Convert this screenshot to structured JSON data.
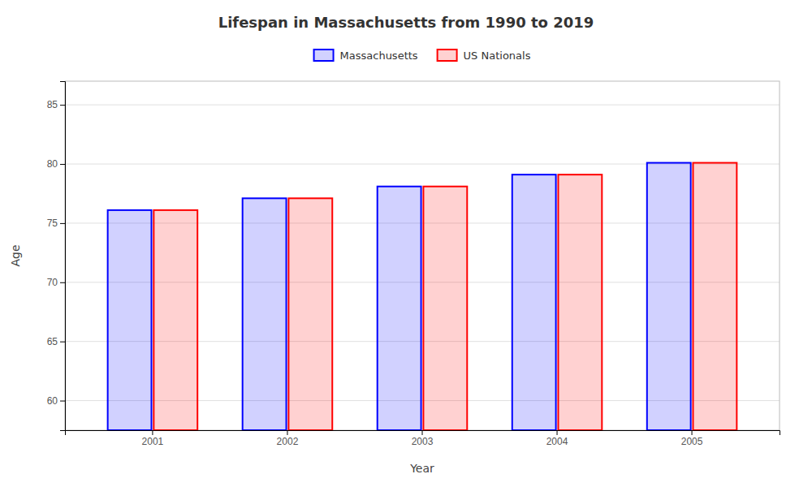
{
  "chart_data": {
    "type": "bar",
    "title": "Lifespan in Massachusetts from 1990 to 2019",
    "x_label": "Year",
    "y_label": "Age",
    "categories": [
      "2001",
      "2002",
      "2003",
      "2004",
      "2005"
    ],
    "series": [
      {
        "name": "Massachusetts",
        "color": "#0000ff",
        "values": [
          76.1,
          77.1,
          78.1,
          79.1,
          80.1
        ]
      },
      {
        "name": "US Nationals",
        "color": "#ff0000",
        "values": [
          76.1,
          77.1,
          78.1,
          79.1,
          80.1
        ]
      }
    ],
    "ylim": [
      57.5,
      87
    ],
    "yticks": [
      60,
      65,
      70,
      75,
      80,
      85
    ],
    "grid": true,
    "legend": "top"
  }
}
